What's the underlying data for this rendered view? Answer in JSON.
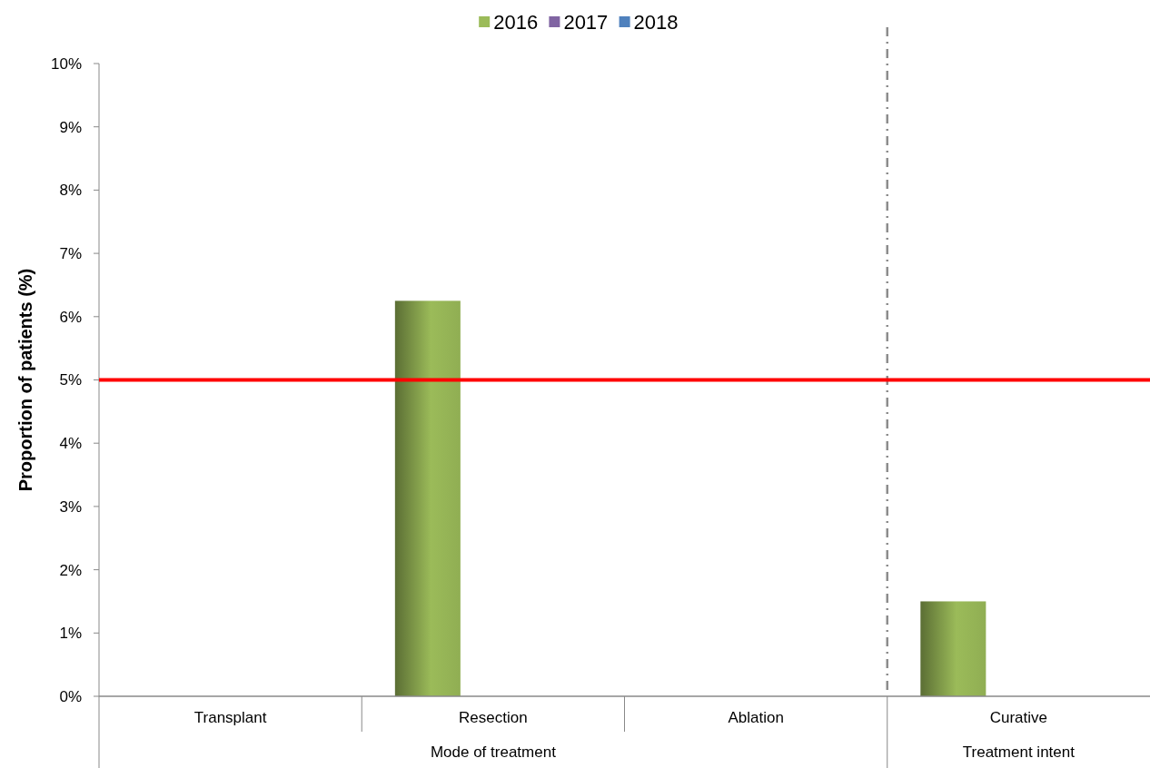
{
  "chart_data": {
    "type": "bar",
    "categories": [
      "Transplant",
      "Resection",
      "Ablation",
      "Curative"
    ],
    "series": [
      {
        "name": "2016",
        "color": "#9bbb59",
        "values": [
          0,
          6.25,
          0,
          1.5
        ]
      },
      {
        "name": "2017",
        "color": "#8064a2",
        "values": [
          0,
          0,
          0,
          0
        ]
      },
      {
        "name": "2018",
        "color": "#4f81bd",
        "values": [
          0,
          0,
          0,
          0
        ]
      }
    ],
    "ylabel": "Proportion of patients (%)",
    "ylim": [
      0,
      10
    ],
    "yticks": [
      {
        "value": 0,
        "label": "0%"
      },
      {
        "value": 1,
        "label": "1%"
      },
      {
        "value": 2,
        "label": "2%"
      },
      {
        "value": 3,
        "label": "3%"
      },
      {
        "value": 4,
        "label": "4%"
      },
      {
        "value": 5,
        "label": "5%"
      },
      {
        "value": 6,
        "label": "6%"
      },
      {
        "value": 7,
        "label": "7%"
      },
      {
        "value": 8,
        "label": "8%"
      },
      {
        "value": 9,
        "label": "9%"
      },
      {
        "value": 10,
        "label": "10%"
      }
    ],
    "ref_lines": [
      {
        "axis": "y",
        "value": 5,
        "color": "#ff0000"
      }
    ],
    "annotations": [
      "Mode of treatment",
      "Treatment intent"
    ],
    "legend": "top"
  }
}
